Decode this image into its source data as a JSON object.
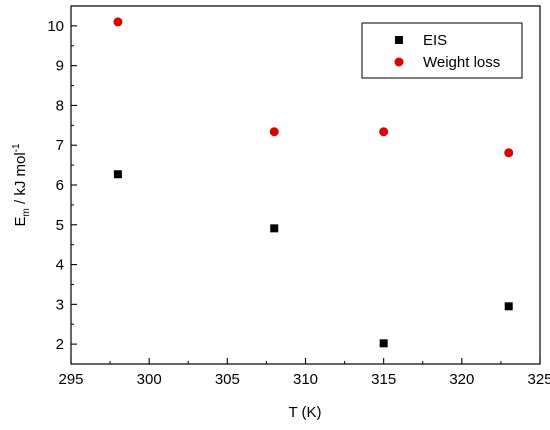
{
  "chart_data": {
    "type": "scatter",
    "title": "",
    "xlabel": "T (K)",
    "ylabel": {
      "main": "E",
      "sub": "m",
      "rest": " / kJ mol",
      "sup": "-1"
    },
    "xlim": [
      295,
      325
    ],
    "ylim": [
      1.5,
      10.5
    ],
    "xticks": [
      295,
      300,
      305,
      310,
      315,
      320,
      325
    ],
    "yticks": [
      2,
      3,
      4,
      5,
      6,
      7,
      8,
      9,
      10
    ],
    "grid": false,
    "legend_position": "top-right",
    "series": [
      {
        "name": "EIS",
        "marker": "square",
        "color": "#000000",
        "x": [
          298,
          308,
          315,
          323
        ],
        "y": [
          6.27,
          4.91,
          2.02,
          2.95
        ]
      },
      {
        "name": "Weight loss",
        "marker": "circle",
        "color": "#e00000",
        "x": [
          298,
          308,
          315,
          323
        ],
        "y": [
          10.1,
          7.34,
          7.34,
          6.81
        ]
      }
    ]
  }
}
